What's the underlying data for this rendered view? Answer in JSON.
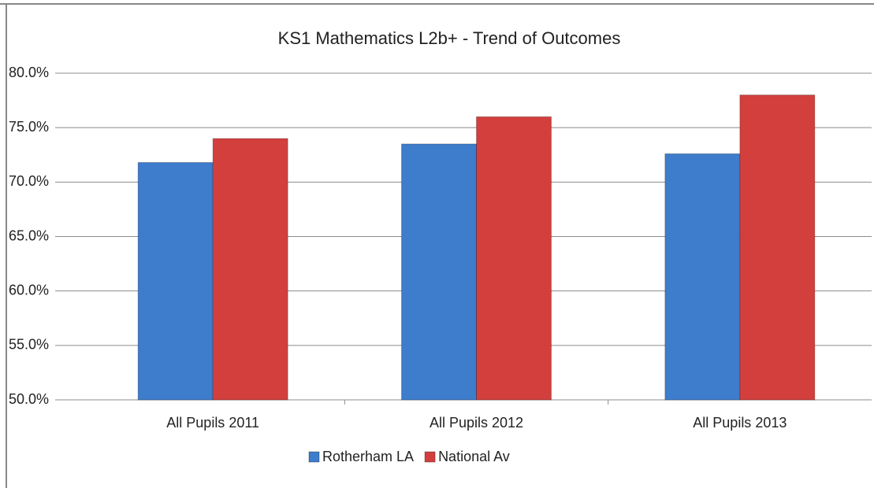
{
  "chart_data": {
    "type": "bar",
    "title": "KS1 Mathematics L2b+ - Trend of Outcomes",
    "categories": [
      "All Pupils 2011",
      "All Pupils 2012",
      "All Pupils 2013"
    ],
    "series": [
      {
        "name": "Rotherham LA",
        "color": "#3e7ccc",
        "values": [
          71.8,
          73.5,
          72.6
        ]
      },
      {
        "name": "National Av",
        "color": "#d23f3d",
        "values": [
          74,
          76,
          78
        ]
      }
    ],
    "ylim": [
      50,
      80
    ],
    "yticks": [
      {
        "value": 50,
        "label": "50.0%"
      },
      {
        "value": 55,
        "label": "55.0%"
      },
      {
        "value": 60,
        "label": "60.0%"
      },
      {
        "value": 65,
        "label": "65.0%"
      },
      {
        "value": 70,
        "label": "70.0%"
      },
      {
        "value": 75,
        "label": "75.0%"
      },
      {
        "value": 80,
        "label": "80.0%"
      }
    ],
    "grid": true,
    "legend": "bottom"
  }
}
